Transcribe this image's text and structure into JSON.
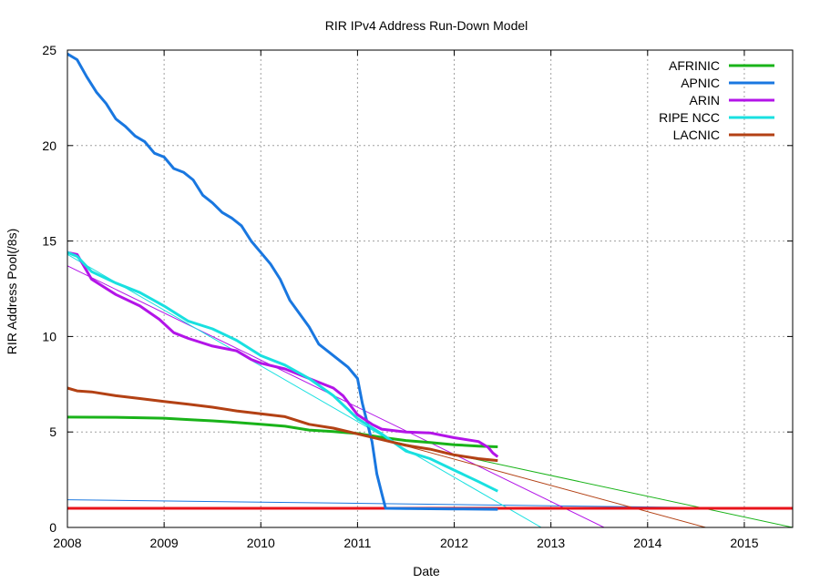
{
  "chart_data": {
    "type": "line",
    "title": "RIR IPv4 Address Run-Down Model",
    "xlabel": "Date",
    "ylabel": "RIR Address Pool(/8s)",
    "xlim": [
      2008.0,
      2015.5
    ],
    "ylim": [
      0,
      25
    ],
    "xticks": [
      2008,
      2009,
      2010,
      2011,
      2012,
      2013,
      2014,
      2015
    ],
    "yticks": [
      0,
      5,
      10,
      15,
      20,
      25
    ],
    "grid": true,
    "legend_position": "top-right",
    "threshold": {
      "y": 1,
      "color": "#e8141b"
    },
    "series": [
      {
        "name": "AFRINIC",
        "color": "#19b319",
        "values": [
          [
            2008.0,
            5.78
          ],
          [
            2008.5,
            5.77
          ],
          [
            2009.0,
            5.72
          ],
          [
            2009.25,
            5.65
          ],
          [
            2009.5,
            5.58
          ],
          [
            2009.75,
            5.5
          ],
          [
            2010.0,
            5.4
          ],
          [
            2010.25,
            5.3
          ],
          [
            2010.5,
            5.1
          ],
          [
            2010.75,
            5.02
          ],
          [
            2011.0,
            4.92
          ],
          [
            2011.25,
            4.72
          ],
          [
            2011.5,
            4.55
          ],
          [
            2011.75,
            4.45
          ],
          [
            2012.0,
            4.33
          ],
          [
            2012.25,
            4.26
          ],
          [
            2012.45,
            4.22
          ]
        ],
        "projection": [
          [
            2011.0,
            4.9
          ],
          [
            2015.5,
            0
          ]
        ]
      },
      {
        "name": "APNIC",
        "color": "#1977e0",
        "values": [
          [
            2008.0,
            24.8
          ],
          [
            2008.1,
            24.5
          ],
          [
            2008.2,
            23.6
          ],
          [
            2008.3,
            22.8
          ],
          [
            2008.4,
            22.2
          ],
          [
            2008.5,
            21.4
          ],
          [
            2008.6,
            21.0
          ],
          [
            2008.7,
            20.5
          ],
          [
            2008.8,
            20.2
          ],
          [
            2008.9,
            19.6
          ],
          [
            2009.0,
            19.4
          ],
          [
            2009.1,
            18.8
          ],
          [
            2009.2,
            18.6
          ],
          [
            2009.3,
            18.2
          ],
          [
            2009.4,
            17.4
          ],
          [
            2009.5,
            17.0
          ],
          [
            2009.6,
            16.5
          ],
          [
            2009.7,
            16.2
          ],
          [
            2009.8,
            15.8
          ],
          [
            2009.9,
            15.0
          ],
          [
            2010.0,
            14.4
          ],
          [
            2010.1,
            13.8
          ],
          [
            2010.2,
            13.0
          ],
          [
            2010.3,
            11.9
          ],
          [
            2010.4,
            11.2
          ],
          [
            2010.5,
            10.5
          ],
          [
            2010.6,
            9.6
          ],
          [
            2010.7,
            9.2
          ],
          [
            2010.8,
            8.8
          ],
          [
            2010.9,
            8.4
          ],
          [
            2011.0,
            7.8
          ],
          [
            2011.05,
            6.5
          ],
          [
            2011.1,
            5.5
          ],
          [
            2011.15,
            4.5
          ],
          [
            2011.2,
            2.8
          ],
          [
            2011.25,
            1.8
          ],
          [
            2011.29,
            1.0
          ],
          [
            2011.5,
            0.99
          ],
          [
            2012.0,
            0.97
          ],
          [
            2012.45,
            0.95
          ]
        ],
        "projection": [
          [
            2008.0,
            1.45
          ],
          [
            2015.5,
            0.98
          ]
        ]
      },
      {
        "name": "ARIN",
        "color": "#b314e8",
        "values": [
          [
            2008.0,
            14.4
          ],
          [
            2008.1,
            14.3
          ],
          [
            2008.25,
            13.0
          ],
          [
            2008.5,
            12.2
          ],
          [
            2008.75,
            11.6
          ],
          [
            2008.95,
            10.9
          ],
          [
            2009.1,
            10.2
          ],
          [
            2009.25,
            9.9
          ],
          [
            2009.5,
            9.5
          ],
          [
            2009.75,
            9.25
          ],
          [
            2009.9,
            8.8
          ],
          [
            2010.0,
            8.6
          ],
          [
            2010.25,
            8.3
          ],
          [
            2010.5,
            7.8
          ],
          [
            2010.75,
            7.3
          ],
          [
            2010.85,
            6.9
          ],
          [
            2011.0,
            5.9
          ],
          [
            2011.15,
            5.4
          ],
          [
            2011.25,
            5.15
          ],
          [
            2011.5,
            5.0
          ],
          [
            2011.75,
            4.95
          ],
          [
            2012.0,
            4.7
          ],
          [
            2012.25,
            4.5
          ],
          [
            2012.35,
            4.2
          ],
          [
            2012.4,
            3.9
          ],
          [
            2012.45,
            3.7
          ]
        ],
        "projection": [
          [
            2008.0,
            13.7
          ],
          [
            2013.55,
            0
          ]
        ]
      },
      {
        "name": "RIPE NCC",
        "color": "#19e0e0",
        "values": [
          [
            2008.0,
            14.4
          ],
          [
            2008.1,
            14.2
          ],
          [
            2008.25,
            13.4
          ],
          [
            2008.5,
            12.8
          ],
          [
            2008.75,
            12.3
          ],
          [
            2009.0,
            11.6
          ],
          [
            2009.25,
            10.8
          ],
          [
            2009.5,
            10.4
          ],
          [
            2009.75,
            9.8
          ],
          [
            2010.0,
            9.0
          ],
          [
            2010.25,
            8.5
          ],
          [
            2010.5,
            7.8
          ],
          [
            2010.75,
            6.9
          ],
          [
            2011.0,
            5.7
          ],
          [
            2011.25,
            4.9
          ],
          [
            2011.5,
            4.0
          ],
          [
            2011.75,
            3.6
          ],
          [
            2012.0,
            3.0
          ],
          [
            2012.25,
            2.4
          ],
          [
            2012.45,
            1.9
          ]
        ],
        "projection": [
          [
            2008.0,
            14.3
          ],
          [
            2012.9,
            0
          ]
        ]
      },
      {
        "name": "LACNIC",
        "color": "#b34114",
        "values": [
          [
            2008.0,
            7.3
          ],
          [
            2008.1,
            7.15
          ],
          [
            2008.25,
            7.1
          ],
          [
            2008.5,
            6.9
          ],
          [
            2008.75,
            6.75
          ],
          [
            2009.0,
            6.6
          ],
          [
            2009.25,
            6.45
          ],
          [
            2009.5,
            6.3
          ],
          [
            2009.75,
            6.1
          ],
          [
            2010.0,
            5.95
          ],
          [
            2010.25,
            5.8
          ],
          [
            2010.5,
            5.4
          ],
          [
            2010.75,
            5.2
          ],
          [
            2011.0,
            4.9
          ],
          [
            2011.25,
            4.6
          ],
          [
            2011.5,
            4.3
          ],
          [
            2011.75,
            4.1
          ],
          [
            2012.0,
            3.8
          ],
          [
            2012.25,
            3.6
          ],
          [
            2012.45,
            3.5
          ]
        ],
        "projection": [
          [
            2011.0,
            4.95
          ],
          [
            2014.6,
            0
          ]
        ]
      }
    ]
  }
}
